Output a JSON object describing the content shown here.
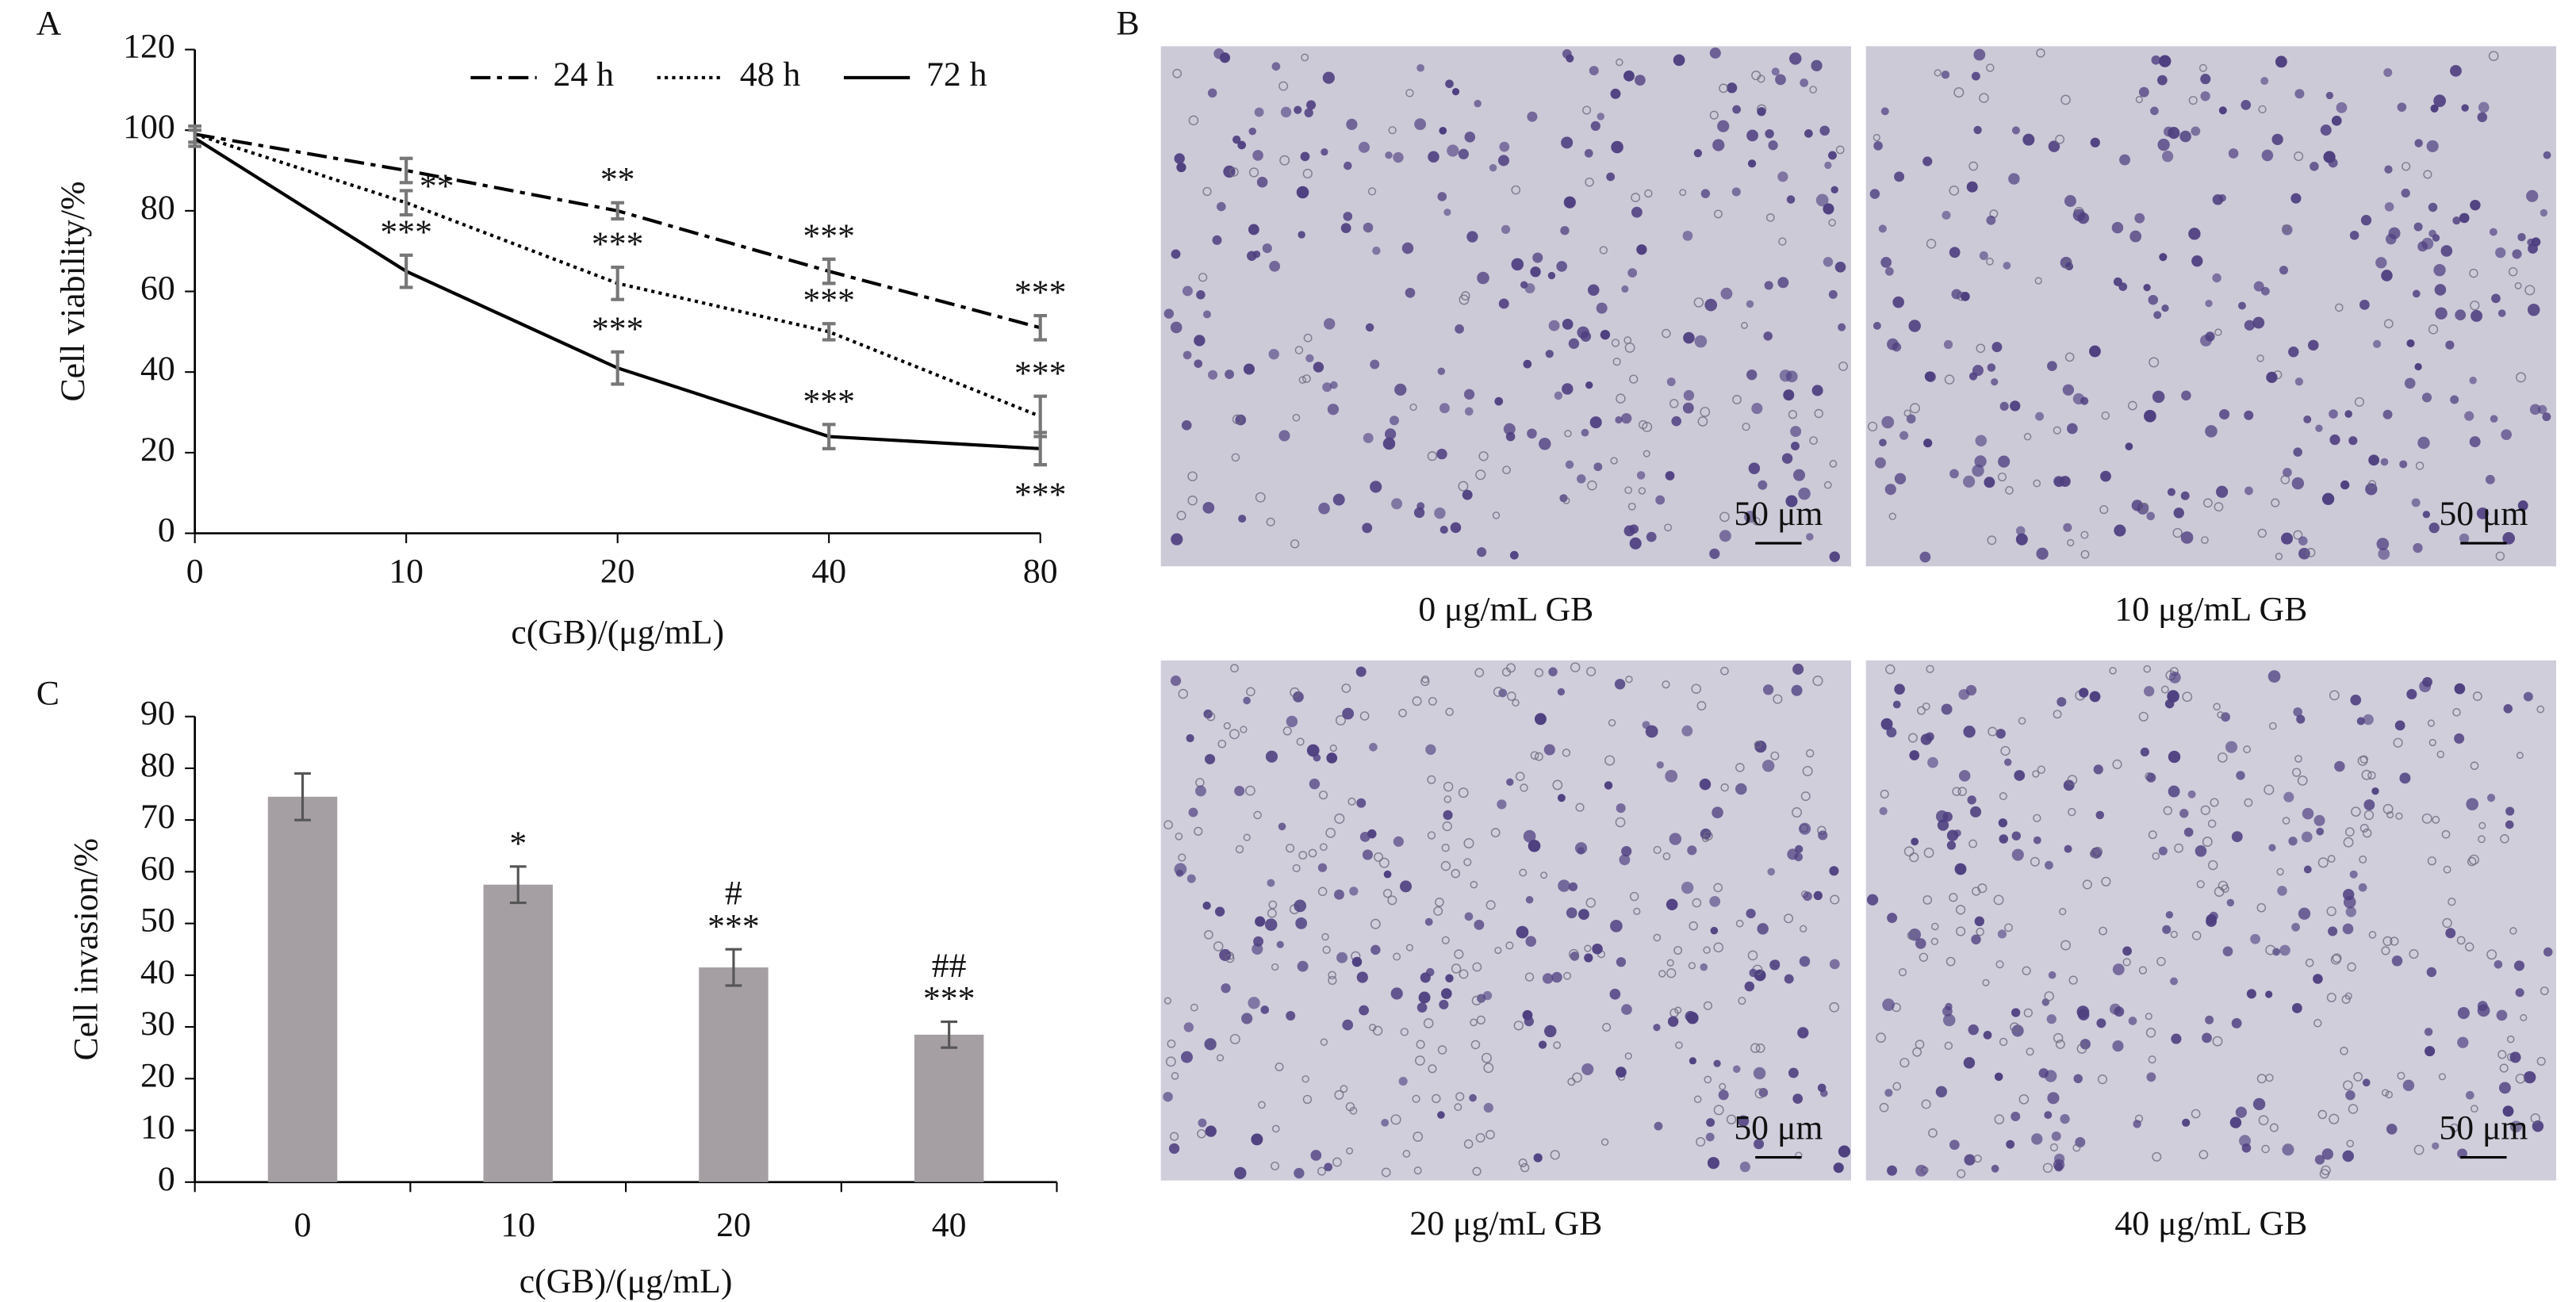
{
  "chart_data": [
    {
      "type": "line",
      "panel": "A",
      "x_label": "c(GB)/(μg/mL)",
      "y_label": "Cell viability/%",
      "categories": [
        "0",
        "10",
        "20",
        "40",
        "80"
      ],
      "ylim": [
        0,
        120
      ],
      "yticks": [
        0,
        20,
        40,
        60,
        80,
        100,
        120
      ],
      "series": [
        {
          "name": "24 h",
          "color": "#000000",
          "dash": "dashdot",
          "values": [
            99,
            90,
            80,
            65,
            51
          ],
          "errors": [
            2,
            3,
            2,
            3,
            3
          ],
          "sig": [
            null,
            null,
            "**",
            "***",
            "***"
          ]
        },
        {
          "name": "48 h",
          "color": "#000000",
          "dash": "dotted",
          "values": [
            99,
            82,
            62,
            50,
            29
          ],
          "errors": [
            2,
            3,
            4,
            2,
            5
          ],
          "sig": [
            null,
            "**",
            "***",
            "***",
            "***"
          ]
        },
        {
          "name": "72 h",
          "color": "#000000",
          "dash": "solid",
          "values": [
            98,
            65,
            41,
            24,
            21
          ],
          "errors": [
            2,
            4,
            4,
            3,
            4
          ],
          "sig": [
            null,
            "***",
            "***",
            "***",
            "***"
          ]
        }
      ],
      "error_color": "#777777",
      "legend": "top"
    },
    {
      "type": "bar",
      "panel": "C",
      "x_label": "c(GB)/(μg/mL)",
      "y_label": "Cell invasion/%",
      "categories": [
        "0",
        "10",
        "20",
        "40"
      ],
      "values": [
        74.5,
        57.5,
        41.5,
        28.5
      ],
      "errors": [
        4.5,
        3.5,
        3.5,
        2.5
      ],
      "sig": [
        null,
        "*",
        "***",
        "***"
      ],
      "sig2": [
        null,
        null,
        "#",
        "##"
      ],
      "color": "#a59fa4",
      "error_color": "#555555",
      "ylim": [
        0,
        90
      ],
      "yticks": [
        0,
        10,
        20,
        30,
        40,
        50,
        60,
        70,
        80,
        90
      ]
    }
  ],
  "figure": {
    "panel_label": "B",
    "micrographs": [
      {
        "caption": "0 μg/mL GB",
        "scale_bar": "50 μm"
      },
      {
        "caption": "10 μg/mL GB",
        "scale_bar": "50 μm"
      },
      {
        "caption": "20 μg/mL GB",
        "scale_bar": "50 μm"
      },
      {
        "caption": "40 μg/mL GB",
        "scale_bar": "50 μm"
      }
    ]
  }
}
